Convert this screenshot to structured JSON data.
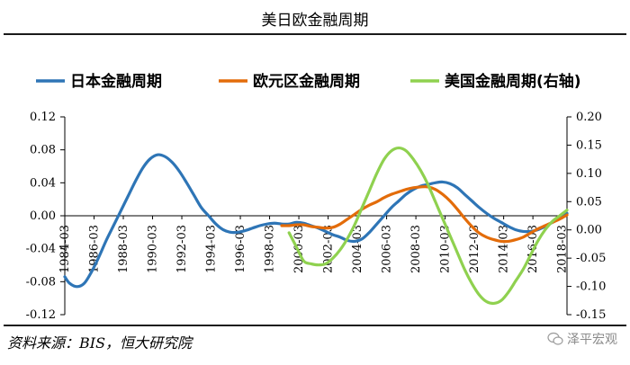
{
  "header": {
    "title": "美日欧金融周期"
  },
  "footer": {
    "source": "资料来源：BIS，恒大研究院",
    "watermark": "泽平宏观"
  },
  "colors": {
    "japan": "#2E75B6",
    "euro": "#E36C0A",
    "us": "#8FD14F",
    "axis": "#000000"
  },
  "chart_data": {
    "type": "line",
    "series": [
      {
        "name": "日本金融周期",
        "axis": "left",
        "points": [
          [
            1984.17,
            -0.074
          ],
          [
            1984.5,
            -0.082
          ],
          [
            1985.0,
            -0.086
          ],
          [
            1985.5,
            -0.082
          ],
          [
            1986.0,
            -0.068
          ],
          [
            1986.5,
            -0.05
          ],
          [
            1987.0,
            -0.03
          ],
          [
            1987.5,
            -0.012
          ],
          [
            1988.0,
            0.006
          ],
          [
            1988.5,
            0.024
          ],
          [
            1989.0,
            0.042
          ],
          [
            1989.5,
            0.058
          ],
          [
            1990.0,
            0.069
          ],
          [
            1990.5,
            0.074
          ],
          [
            1991.0,
            0.072
          ],
          [
            1991.5,
            0.065
          ],
          [
            1992.0,
            0.054
          ],
          [
            1992.5,
            0.04
          ],
          [
            1993.0,
            0.025
          ],
          [
            1993.5,
            0.01
          ],
          [
            1994.0,
            0.0
          ],
          [
            1994.5,
            -0.01
          ],
          [
            1995.0,
            -0.017
          ],
          [
            1995.5,
            -0.02
          ],
          [
            1996.0,
            -0.02
          ],
          [
            1996.5,
            -0.018
          ],
          [
            1997.0,
            -0.015
          ],
          [
            1997.5,
            -0.012
          ],
          [
            1998.0,
            -0.01
          ],
          [
            1998.5,
            -0.009
          ],
          [
            1999.0,
            -0.01
          ],
          [
            1999.5,
            -0.01
          ],
          [
            2000.0,
            -0.008
          ],
          [
            2000.5,
            -0.009
          ],
          [
            2001.0,
            -0.012
          ],
          [
            2001.5,
            -0.015
          ],
          [
            2002.0,
            -0.019
          ],
          [
            2002.5,
            -0.023
          ],
          [
            2003.0,
            -0.026
          ],
          [
            2003.5,
            -0.03
          ],
          [
            2004.0,
            -0.031
          ],
          [
            2004.5,
            -0.028
          ],
          [
            2005.0,
            -0.02
          ],
          [
            2005.5,
            -0.01
          ],
          [
            2006.0,
            0.0
          ],
          [
            2006.5,
            0.01
          ],
          [
            2007.0,
            0.018
          ],
          [
            2007.5,
            0.026
          ],
          [
            2008.0,
            0.032
          ],
          [
            2008.5,
            0.036
          ],
          [
            2009.0,
            0.038
          ],
          [
            2009.5,
            0.04
          ],
          [
            2010.0,
            0.041
          ],
          [
            2010.5,
            0.039
          ],
          [
            2011.0,
            0.034
          ],
          [
            2011.5,
            0.026
          ],
          [
            2012.0,
            0.018
          ],
          [
            2012.5,
            0.01
          ],
          [
            2013.0,
            0.003
          ],
          [
            2013.5,
            -0.003
          ],
          [
            2014.0,
            -0.008
          ],
          [
            2014.5,
            -0.013
          ],
          [
            2015.0,
            -0.017
          ],
          [
            2015.5,
            -0.019
          ],
          [
            2016.0,
            -0.019
          ],
          [
            2016.5,
            -0.017
          ],
          [
            2017.0,
            -0.013
          ],
          [
            2017.5,
            -0.008
          ],
          [
            2018.0,
            -0.003
          ],
          [
            2018.5,
            0.003
          ]
        ]
      },
      {
        "name": "欧元区金融周期",
        "axis": "left",
        "points": [
          [
            1999.0,
            -0.012
          ],
          [
            1999.5,
            -0.012
          ],
          [
            2000.0,
            -0.011
          ],
          [
            2000.5,
            -0.011
          ],
          [
            2001.0,
            -0.013
          ],
          [
            2001.5,
            -0.014
          ],
          [
            2002.0,
            -0.015
          ],
          [
            2002.5,
            -0.014
          ],
          [
            2003.0,
            -0.01
          ],
          [
            2003.5,
            -0.004
          ],
          [
            2004.0,
            0.002
          ],
          [
            2004.5,
            0.008
          ],
          [
            2005.0,
            0.013
          ],
          [
            2005.5,
            0.017
          ],
          [
            2006.0,
            0.022
          ],
          [
            2006.5,
            0.026
          ],
          [
            2007.0,
            0.029
          ],
          [
            2007.5,
            0.032
          ],
          [
            2008.0,
            0.034
          ],
          [
            2008.5,
            0.035
          ],
          [
            2009.0,
            0.035
          ],
          [
            2009.5,
            0.032
          ],
          [
            2010.0,
            0.026
          ],
          [
            2010.5,
            0.018
          ],
          [
            2011.0,
            0.008
          ],
          [
            2011.5,
            -0.003
          ],
          [
            2012.0,
            -0.013
          ],
          [
            2012.5,
            -0.021
          ],
          [
            2013.0,
            -0.026
          ],
          [
            2013.5,
            -0.029
          ],
          [
            2014.0,
            -0.031
          ],
          [
            2014.5,
            -0.031
          ],
          [
            2015.0,
            -0.029
          ],
          [
            2015.5,
            -0.026
          ],
          [
            2016.0,
            -0.021
          ],
          [
            2016.5,
            -0.016
          ],
          [
            2017.0,
            -0.012
          ],
          [
            2017.5,
            -0.008
          ],
          [
            2018.0,
            -0.004
          ],
          [
            2018.5,
            0.001
          ]
        ]
      },
      {
        "name": "美国金融周期(右轴)",
        "axis": "right",
        "points": [
          [
            1999.5,
            -0.005
          ],
          [
            2000.0,
            -0.03
          ],
          [
            2000.5,
            -0.055
          ],
          [
            2001.0,
            -0.06
          ],
          [
            2001.5,
            -0.062
          ],
          [
            2002.0,
            -0.06
          ],
          [
            2002.5,
            -0.05
          ],
          [
            2003.0,
            -0.035
          ],
          [
            2003.5,
            -0.015
          ],
          [
            2004.0,
            0.01
          ],
          [
            2004.5,
            0.04
          ],
          [
            2005.0,
            0.07
          ],
          [
            2005.5,
            0.1
          ],
          [
            2006.0,
            0.125
          ],
          [
            2006.5,
            0.14
          ],
          [
            2007.0,
            0.145
          ],
          [
            2007.5,
            0.14
          ],
          [
            2008.0,
            0.125
          ],
          [
            2008.5,
            0.105
          ],
          [
            2009.0,
            0.08
          ],
          [
            2009.5,
            0.05
          ],
          [
            2010.0,
            0.02
          ],
          [
            2010.5,
            -0.01
          ],
          [
            2011.0,
            -0.04
          ],
          [
            2011.5,
            -0.07
          ],
          [
            2012.0,
            -0.095
          ],
          [
            2012.5,
            -0.115
          ],
          [
            2013.0,
            -0.127
          ],
          [
            2013.5,
            -0.13
          ],
          [
            2014.0,
            -0.125
          ],
          [
            2014.5,
            -0.11
          ],
          [
            2015.0,
            -0.09
          ],
          [
            2015.5,
            -0.07
          ],
          [
            2016.0,
            -0.045
          ],
          [
            2016.5,
            -0.02
          ],
          [
            2017.0,
            0.0
          ],
          [
            2017.5,
            0.015
          ],
          [
            2018.0,
            0.025
          ],
          [
            2018.5,
            0.035
          ]
        ]
      }
    ],
    "left_axis": {
      "ylim": [
        -0.12,
        0.12
      ],
      "ticks": [
        "0.12",
        "0.08",
        "0.04",
        "0.00",
        "-0.04",
        "-0.08",
        "-0.12"
      ],
      "tick_values": [
        0.12,
        0.08,
        0.04,
        0.0,
        -0.04,
        -0.08,
        -0.12
      ]
    },
    "right_axis": {
      "ylim": [
        -0.15,
        0.2
      ],
      "ticks": [
        "0.20",
        "0.15",
        "0.10",
        "0.05",
        "0.00",
        "-0.05",
        "-0.10",
        "-0.15"
      ],
      "tick_values": [
        0.2,
        0.15,
        0.1,
        0.05,
        0.0,
        -0.05,
        -0.1,
        -0.15
      ]
    },
    "x_axis": {
      "xlim": [
        1984.17,
        2018.5
      ],
      "ticks": [
        "1984-03",
        "1986-03",
        "1988-03",
        "1990-03",
        "1992-03",
        "1994-03",
        "1996-03",
        "1998-03",
        "2000-03",
        "2002-03",
        "2004-03",
        "2006-03",
        "2008-03",
        "2010-03",
        "2012-03",
        "2014-03",
        "2016-03",
        "2018-03"
      ],
      "tick_values": [
        1984.17,
        1986.17,
        1988.17,
        1990.17,
        1992.17,
        1994.17,
        1996.17,
        1998.17,
        2000.17,
        2002.17,
        2004.17,
        2006.17,
        2008.17,
        2010.17,
        2012.17,
        2014.17,
        2016.17,
        2018.17
      ]
    },
    "legend": {
      "position": "top"
    },
    "grid": false
  }
}
